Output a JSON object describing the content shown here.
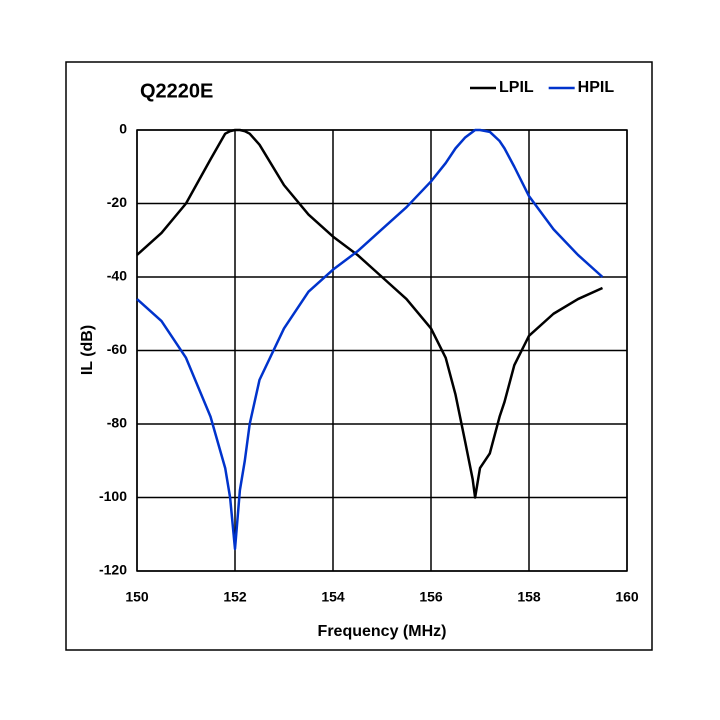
{
  "chart_data": {
    "type": "line",
    "title": "Q2220E",
    "x_label": "Frequency (MHz)",
    "y_label": "IL (dB)",
    "x": [
      150,
      150.5,
      151,
      151.5,
      151.8,
      151.9,
      152,
      152.1,
      152.2,
      152.3,
      152.5,
      153,
      153.5,
      154,
      154.5,
      155,
      155.5,
      156,
      156.3,
      156.5,
      156.7,
      156.85,
      156.9,
      157,
      157.2,
      157.4,
      157.5,
      157.7,
      158,
      158.5,
      159,
      159.5
    ],
    "series": [
      {
        "name": "LPIL",
        "color": "#000000",
        "values": [
          -34,
          -28,
          -20,
          -8,
          -1,
          -0.3,
          0,
          0,
          -0.3,
          -1,
          -4,
          -15,
          -23,
          -29,
          -34,
          -40,
          -46,
          -54,
          -62,
          -72,
          -85,
          -95,
          -100,
          -92,
          -88,
          -78,
          -74,
          -64,
          -56,
          -50,
          -46,
          -43
        ]
      },
      {
        "name": "HPIL",
        "color": "#0033cc",
        "values": [
          -46,
          -52,
          -62,
          -78,
          -92,
          -100,
          -114,
          -98,
          -90,
          -80,
          -68,
          -54,
          -44,
          -38,
          -33,
          -27,
          -21,
          -14,
          -9,
          -5,
          -2,
          -0.5,
          0,
          0,
          -0.5,
          -3,
          -5,
          -10,
          -18,
          -27,
          -34,
          -40
        ]
      }
    ],
    "xlim": [
      150,
      160
    ],
    "xticks": [
      150,
      152,
      154,
      156,
      158,
      160
    ],
    "ylim": [
      -120,
      0
    ],
    "yticks": [
      -120,
      -100,
      -80,
      -60,
      -40,
      -20,
      0
    ],
    "grid": true
  }
}
